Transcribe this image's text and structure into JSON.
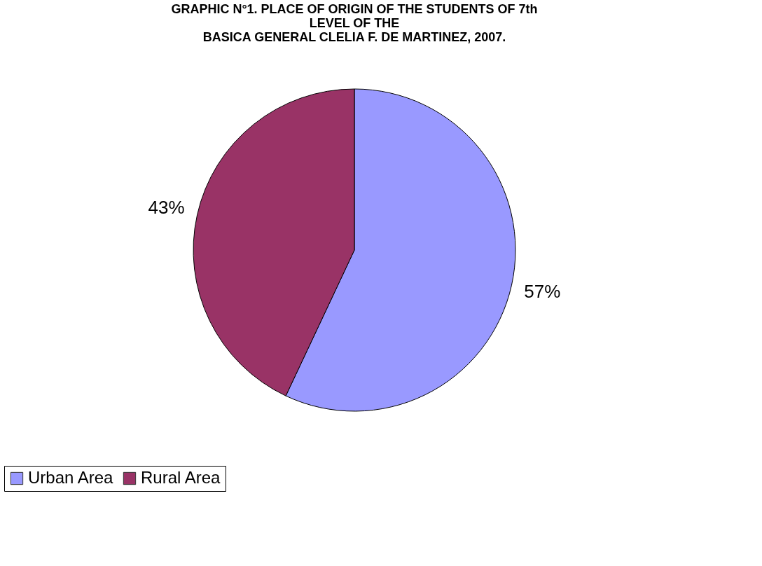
{
  "chart_data": {
    "type": "pie",
    "title": "GRAPHIC N°1.  PLACE OF ORIGIN OF THE  STUDENTS OF 7th\nLEVEL OF THE\nBASICA GENERAL CLELIA F. DE MARTINEZ, 2007.",
    "categories": [
      "Urban Area",
      "Rural Area"
    ],
    "values": [
      57,
      43
    ],
    "colors": [
      "#9999ff",
      "#993366"
    ],
    "value_labels": [
      "57%",
      "43%"
    ],
    "legend": "bottom"
  }
}
